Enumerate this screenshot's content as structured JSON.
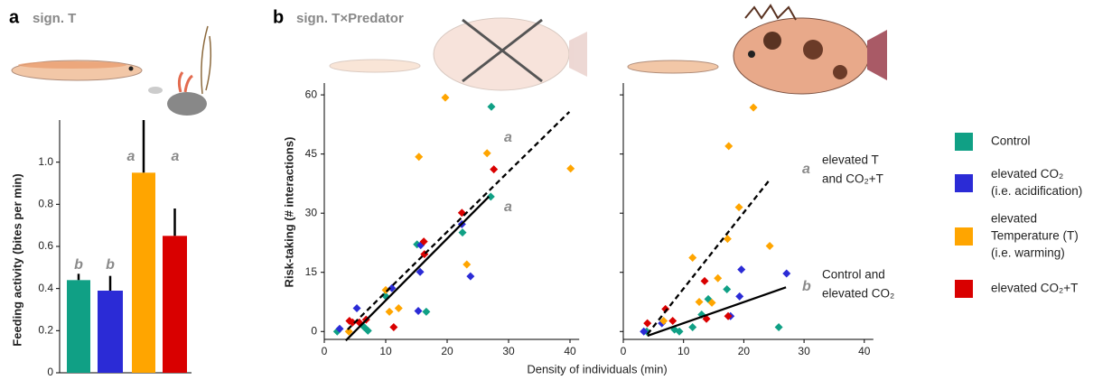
{
  "panels": [
    {
      "label": "a",
      "subtitle": "sign. T"
    },
    {
      "label": "b",
      "subtitle": "sign.  T×Predator"
    }
  ],
  "chart_data": [
    {
      "type": "bar",
      "ylabel": "Feeding activity (bites per min)",
      "categories": [
        null
      ],
      "ylim": [
        0,
        1.2
      ],
      "yticks": [
        0,
        0.2,
        0.4,
        0.6,
        0.8,
        {
          "value": 1,
          "label": "1.0"
        }
      ],
      "series": [
        {
          "name": [
            "Control"
          ],
          "color": "#10a085",
          "values": [
            0.44
          ],
          "errors": [
            0.03
          ],
          "letter": "b"
        },
        {
          "name": [
            "elevated CO₂",
            "(i.e. acidification)"
          ],
          "color": "#2b2bd6",
          "values": [
            0.39
          ],
          "errors": [
            0.07
          ],
          "letter": "b"
        },
        {
          "name": [
            "elevated",
            "Temperature (T)",
            "(i.e. warming)"
          ],
          "color": "#ffa500",
          "values": [
            0.95
          ],
          "errors": [
            0.25
          ],
          "letter": "a"
        },
        {
          "name": [
            "elevated CO₂+T"
          ],
          "color": "#d90000",
          "values": [
            0.65
          ],
          "errors": [
            0.13
          ],
          "letter": "a"
        }
      ]
    },
    {
      "type": "scatter",
      "ylabel": "Risk-taking (# interactions)",
      "xlabel": "Density of individuals (min)",
      "xlim": [
        0,
        41.5
      ],
      "xticks": [
        0,
        10,
        20,
        30,
        40
      ],
      "ylim": [
        -2,
        63
      ],
      "yticks": [
        0,
        15,
        30,
        45,
        60
      ],
      "series": [
        {
          "color": "#10a085",
          "x": [
            27.2,
            27.1,
            22.5,
            15.1,
            16.6,
            9.9,
            2.1,
            6.5,
            7.1
          ],
          "values": [
            57.0,
            34.2,
            25.1,
            22.1,
            5.0,
            9.1,
            0,
            1.1,
            0.2
          ]
        },
        {
          "color": "#2b2bd6",
          "x": [
            22.4,
            23.8,
            15.7,
            15.6,
            15.3,
            11.0,
            5.3,
            2.5
          ],
          "values": [
            27.2,
            14.0,
            21.9,
            15.1,
            5.2,
            11.0,
            5.9,
            0.7
          ]
        },
        {
          "color": "#ffa500",
          "x": [
            19.7,
            26.5,
            40.1,
            15.4,
            23.2,
            10.0,
            12.1,
            10.6,
            4.0
          ],
          "values": [
            59.3,
            45.2,
            41.3,
            44.3,
            17.0,
            10.5,
            5.9,
            5.0,
            0
          ]
        },
        {
          "color": "#d90000",
          "x": [
            27.6,
            22.4,
            16.3,
            16.2,
            11.3,
            4.1,
            4.6,
            6.8,
            5.7
          ],
          "values": [
            41.1,
            30.1,
            19.6,
            22.8,
            1.1,
            2.7,
            2.3,
            3.0,
            2.3
          ]
        }
      ],
      "lines": [
        {
          "dashed": true,
          "x": [
            3.8,
            39.9
          ],
          "values": [
            0.5,
            55.7
          ],
          "letter": "a"
        },
        {
          "dashed": false,
          "x": [
            3.5,
            26.8
          ],
          "values": [
            -2.3,
            34.2
          ],
          "letter": "a"
        }
      ]
    },
    {
      "type": "scatter",
      "xlim": [
        0,
        41.5
      ],
      "xticks": [
        0,
        10,
        20,
        30,
        40
      ],
      "ylim": [
        -2,
        63
      ],
      "yticks": [
        0,
        15,
        30,
        45,
        60
      ],
      "series": [
        {
          "color": "#10a085",
          "x": [
            17.2,
            14.1,
            25.8,
            13.0,
            11.5,
            8.5,
            9.3,
            3.9
          ],
          "values": [
            10.7,
            8.2,
            1.1,
            4.3,
            1.1,
            0.5,
            0,
            0
          ]
        },
        {
          "color": "#2b2bd6",
          "x": [
            27.1,
            19.6,
            19.3,
            17.8,
            3.4,
            6.4
          ],
          "values": [
            14.7,
            15.7,
            8.9,
            3.9,
            0,
            2.1
          ]
        },
        {
          "color": "#ffa500",
          "x": [
            21.6,
            17.5,
            19.2,
            24.3,
            17.3,
            11.5,
            15.7,
            14.7,
            12.6,
            6.7
          ],
          "values": [
            56.8,
            47.0,
            31.5,
            21.7,
            23.5,
            18.7,
            13.5,
            7.3,
            7.5,
            2.7
          ]
        },
        {
          "color": "#d90000",
          "x": [
            13.5,
            17.4,
            4.0,
            7.0,
            8.2,
            13.8
          ],
          "values": [
            12.8,
            3.9,
            2.1,
            5.7,
            2.7,
            3.2
          ]
        }
      ],
      "lines": [
        {
          "dashed": true,
          "x": [
            4.0,
            24.1
          ],
          "values": [
            -0.7,
            38.1
          ],
          "letter": "a",
          "note": [
            "elevated T",
            "and CO₂+T"
          ]
        },
        {
          "dashed": false,
          "x": [
            4.0,
            27.0
          ],
          "values": [
            -1.1,
            11.2
          ],
          "letter": "b",
          "note": [
            "Control and",
            "elevated CO₂"
          ]
        }
      ]
    }
  ]
}
